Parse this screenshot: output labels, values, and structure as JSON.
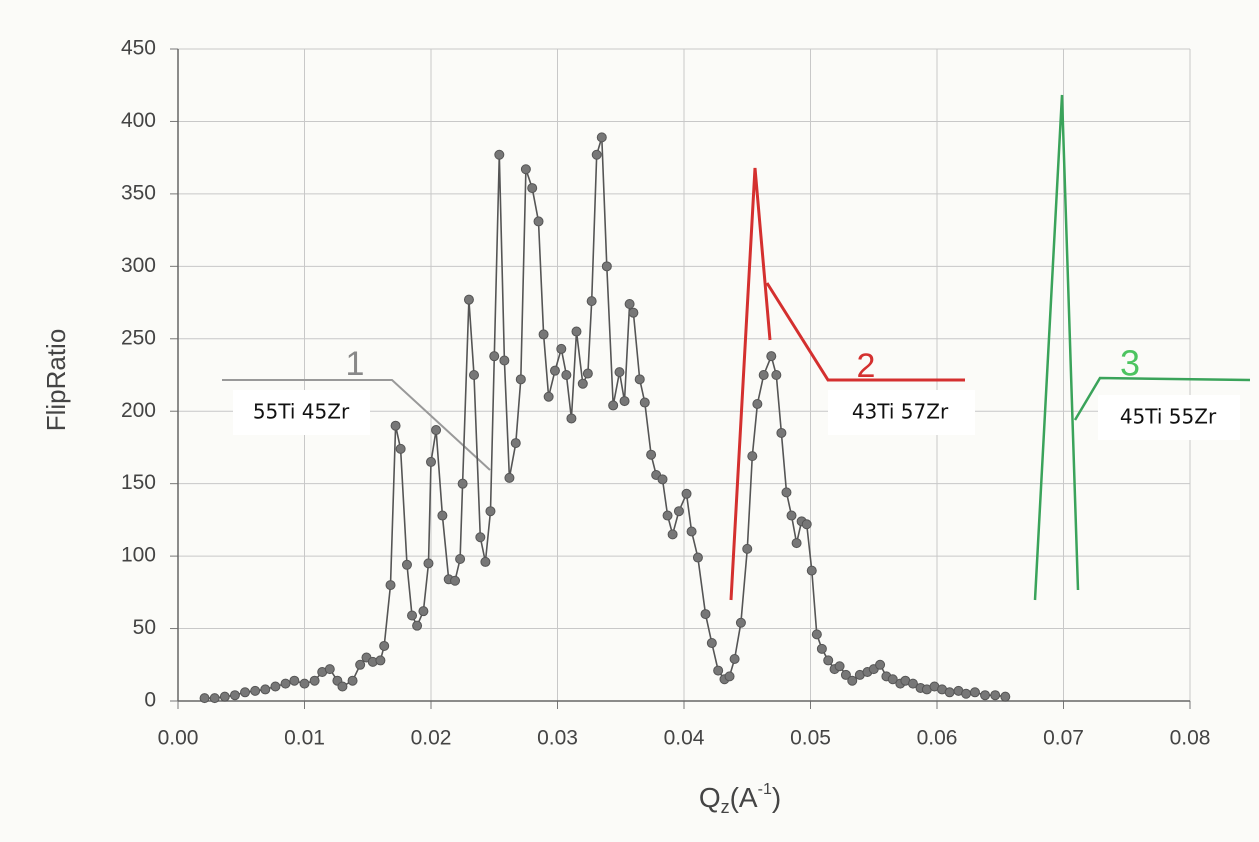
{
  "chart_data": {
    "type": "line",
    "y_label": "FlipRatio",
    "x_label": {
      "base": "Q",
      "sub": "z",
      "mid": "(A",
      "sup": "-1",
      "end": ")"
    },
    "xlim": [
      0,
      0.08
    ],
    "xticks": [
      {
        "value": 0,
        "label": "0.00"
      },
      0.01,
      0.02,
      0.03,
      0.04,
      0.05,
      0.06,
      0.07,
      0.08
    ],
    "ylim": [
      0,
      450
    ],
    "yticks": [
      0,
      50,
      100,
      150,
      200,
      250,
      300,
      350,
      400,
      450
    ],
    "grid": true,
    "annotations": [
      "55Ti 45Zr",
      "43Ti 57Zr",
      "45Ti 55Zr",
      "1",
      "2",
      "3"
    ],
    "x": [
      0.0021,
      0.0029,
      0.0037,
      0.0045,
      0.0053,
      0.0061,
      0.0069,
      0.0077,
      0.0085,
      0.0092,
      0.01,
      0.0108,
      0.0114,
      0.012,
      0.0126,
      0.013,
      0.0138,
      0.0144,
      0.0149,
      0.0154,
      0.016,
      0.0163,
      0.0168,
      0.0172,
      0.0176,
      0.0181,
      0.0185,
      0.0189,
      0.0194,
      0.0198,
      0.02,
      0.0204,
      0.0209,
      0.0214,
      0.0219,
      0.0223,
      0.0225,
      0.023,
      0.0234,
      0.0239,
      0.0243,
      0.0247,
      0.025,
      0.0254,
      0.0258,
      0.0262,
      0.0267,
      0.0271,
      0.0275,
      0.028,
      0.0285,
      0.0289,
      0.0293,
      0.0298,
      0.0303,
      0.0307,
      0.0311,
      0.0315,
      0.032,
      0.0324,
      0.0327,
      0.0331,
      0.0335,
      0.0339,
      0.0344,
      0.0349,
      0.0353,
      0.0357,
      0.036,
      0.0365,
      0.0369,
      0.0374,
      0.0378,
      0.0383,
      0.0387,
      0.0391,
      0.0396,
      0.0402,
      0.0406,
      0.0411,
      0.0417,
      0.0422,
      0.0427,
      0.0432,
      0.0436,
      0.044,
      0.0445,
      0.045,
      0.0454,
      0.0458,
      0.0463,
      0.0469,
      0.0473,
      0.0477,
      0.0481,
      0.0485,
      0.0489,
      0.0493,
      0.0497,
      0.0501,
      0.0505,
      0.0509,
      0.0514,
      0.0519,
      0.0523,
      0.0528,
      0.0533,
      0.0539,
      0.0545,
      0.055,
      0.0555,
      0.056,
      0.0565,
      0.0571,
      0.0575,
      0.0581,
      0.0587,
      0.0592,
      0.0598,
      0.0604,
      0.061,
      0.0617,
      0.0623,
      0.063,
      0.0638,
      0.0646,
      0.0654
    ],
    "series": [
      {
        "color": "#555555",
        "values": [
          2,
          2,
          3,
          4,
          6,
          7,
          8,
          10,
          12,
          14,
          12,
          14,
          20,
          22,
          14,
          10,
          14,
          25,
          30,
          27,
          28,
          38,
          80,
          190,
          174,
          94,
          59,
          52,
          62,
          95,
          165,
          187,
          128,
          84,
          83,
          98,
          150,
          277,
          225,
          113,
          96,
          131,
          238,
          377,
          235,
          154,
          178,
          222,
          367,
          354,
          331,
          253,
          210,
          228,
          243,
          225,
          195,
          255,
          219,
          226,
          276,
          377,
          389,
          300,
          204,
          227,
          207,
          274,
          268,
          222,
          206,
          170,
          156,
          153,
          128,
          115,
          131,
          143,
          117,
          99,
          60,
          40,
          21,
          15,
          17,
          29,
          54,
          105,
          169,
          205,
          225,
          238,
          225,
          185,
          144,
          128,
          109,
          124,
          122,
          90,
          46,
          36,
          28,
          22,
          24,
          18,
          14,
          18,
          20,
          22,
          25,
          17,
          15,
          12,
          14,
          12,
          9,
          8,
          10,
          8,
          6,
          7,
          5,
          6,
          4,
          4,
          3
        ]
      }
    ]
  }
}
